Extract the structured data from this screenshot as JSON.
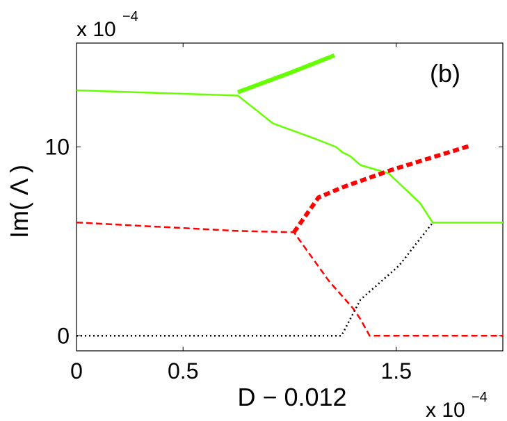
{
  "chart_data": {
    "type": "line",
    "xlabel": "D − 0.012",
    "ylabel": "Im( Λ )",
    "annotation": "(b)",
    "y_multiplier": {
      "base": "x 10",
      "exponent": "−4"
    },
    "x_multiplier": {
      "base": "x 10",
      "exponent": "−4"
    },
    "xlim": [
      0,
      2
    ],
    "xticks": [
      0,
      0.5,
      1.5
    ],
    "ylim": [
      -0.8,
      15.5
    ],
    "yticks": [
      0,
      10
    ],
    "series": [
      {
        "name": "green",
        "color": "#66ff00",
        "style": "solid",
        "width": 2.5,
        "x": [
          0,
          0.757,
          0.921,
          1.118,
          1.217,
          1.25,
          1.283,
          1.332,
          1.464,
          1.612,
          1.671,
          2.0
        ],
        "values": [
          13.0,
          12.72,
          11.25,
          10.44,
          10.0,
          9.7,
          9.52,
          9.04,
          8.6,
          7.02,
          5.99,
          5.99
        ]
      },
      {
        "name": "green-thick",
        "color": "#66ff00",
        "style": "solid",
        "width": 6,
        "x": [
          0.757,
          1.003,
          1.21
        ],
        "values": [
          12.9,
          13.93,
          14.85
        ]
      },
      {
        "name": "red",
        "color": "#ff0000",
        "style": "dashed",
        "width": 2.5,
        "x": [
          0,
          0.757,
          1.02,
          1.184,
          1.299,
          1.332,
          1.375,
          2.0
        ],
        "values": [
          6.0,
          5.55,
          5.48,
          2.9,
          1.43,
          0.88,
          0,
          0
        ]
      },
      {
        "name": "red-thick",
        "color": "#ff0000",
        "style": "dashed",
        "width": 6,
        "x": [
          1.02,
          1.135,
          1.25,
          1.48,
          1.849
        ],
        "values": [
          5.48,
          7.32,
          7.87,
          8.79,
          10.07
        ]
      },
      {
        "name": "black",
        "color": "#000000",
        "style": "dotted",
        "width": 2.5,
        "x": [
          0,
          1.243,
          1.332,
          1.513,
          1.671
        ],
        "values": [
          0,
          0,
          1.91,
          3.71,
          5.99
        ]
      }
    ]
  }
}
